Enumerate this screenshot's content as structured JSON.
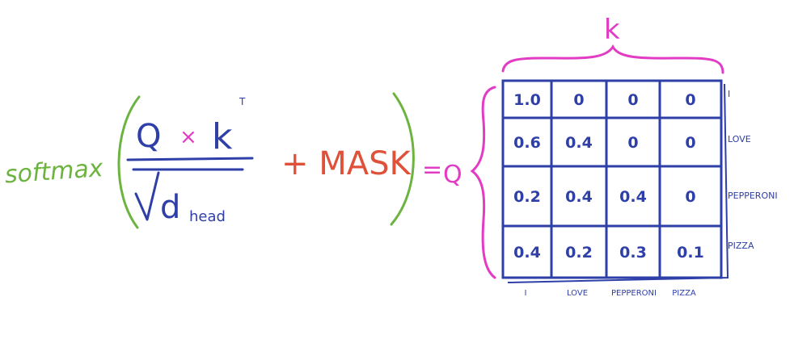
{
  "formula": {
    "softmax": "softmax",
    "q": "Q",
    "times": "×",
    "k": "k",
    "k_superscript": "T",
    "sqrt_d": "d",
    "d_subscript": "head",
    "plus_mask": "+ MASK",
    "equals": "=",
    "q_label": "Q",
    "k_label": "k"
  },
  "matrix": {
    "row_labels": [
      "I",
      "LOVE",
      "PEPPERONI",
      "PIZZA"
    ],
    "col_labels": [
      "I",
      "LOVE",
      "PEPPERONI",
      "PIZZA"
    ],
    "cells": [
      [
        "1.0",
        "0",
        "0",
        "0"
      ],
      [
        "0.6",
        "0.4",
        "0",
        "0"
      ],
      [
        "0.2",
        "0.4",
        "0.4",
        "0"
      ],
      [
        "0.4",
        "0.2",
        "0.3",
        "0.1"
      ]
    ]
  },
  "colors": {
    "green": "#6db33f",
    "blue": "#2e3fa8",
    "magenta": "#e23bc4",
    "red": "#e0513a"
  }
}
